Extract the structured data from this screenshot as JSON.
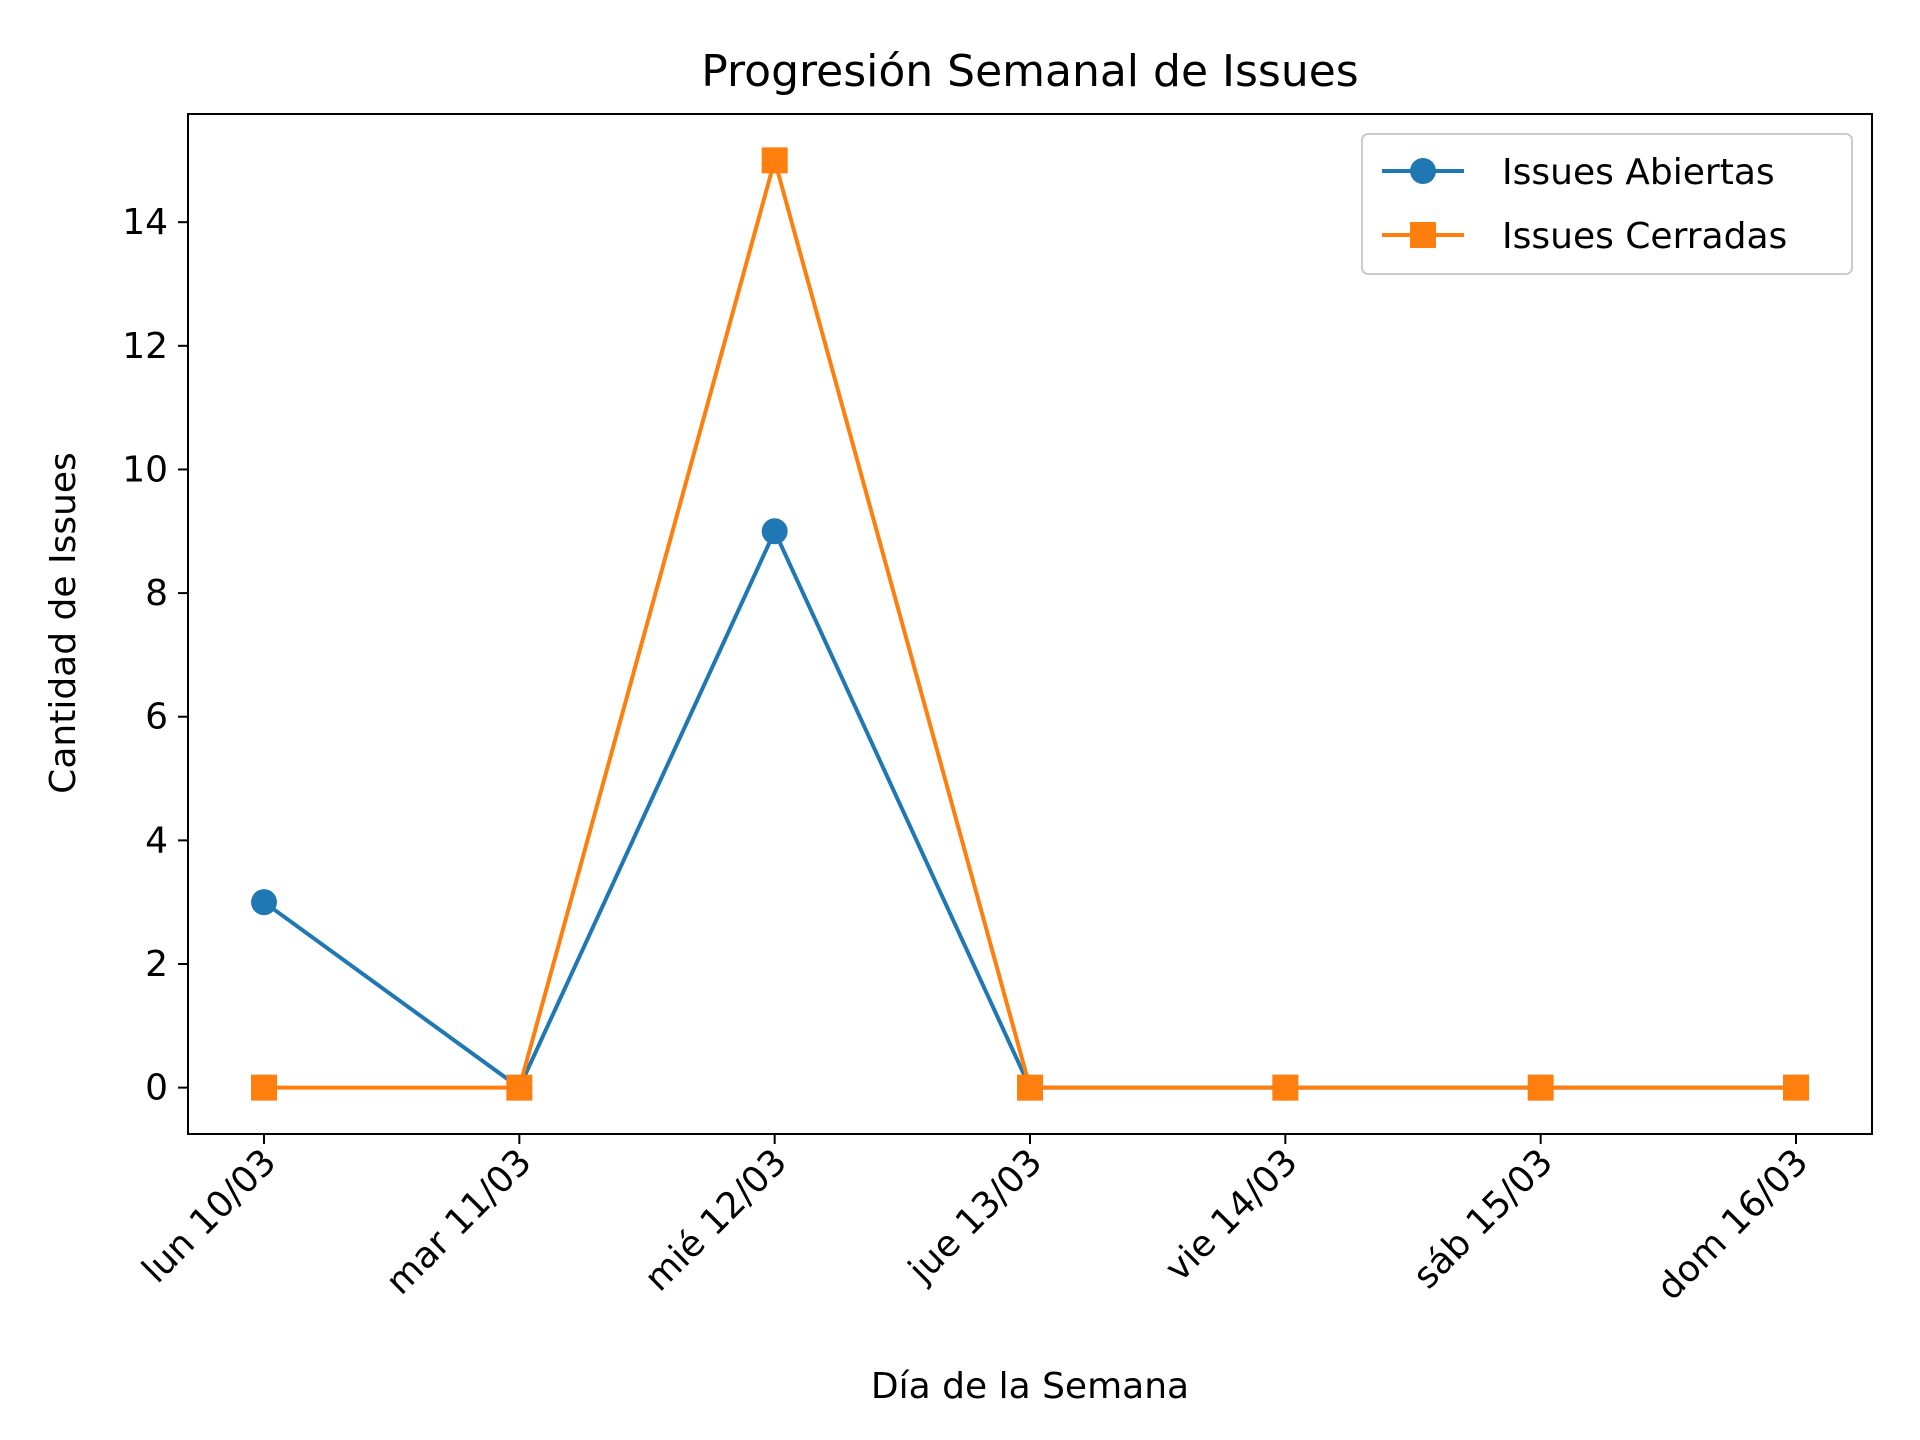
{
  "chart_data": {
    "type": "line",
    "title": "Progresión Semanal de Issues",
    "xlabel": "Día de la Semana",
    "ylabel": "Cantidad de Issues",
    "categories": [
      "lun 10/03",
      "mar 11/03",
      "mié 12/03",
      "jue 13/03",
      "vie 14/03",
      "sáb 15/03",
      "dom 16/03"
    ],
    "series": [
      {
        "name": "Issues Abiertas",
        "values": [
          3,
          0,
          9,
          0,
          0,
          0,
          0
        ],
        "color": "#1f77b4",
        "marker": "circle"
      },
      {
        "name": "Issues Cerradas",
        "values": [
          0,
          0,
          15,
          0,
          0,
          0,
          0
        ],
        "color": "#ff7f0e",
        "marker": "square"
      }
    ],
    "ylim": [
      -0.75,
      15.75
    ],
    "yticks": [
      0,
      2,
      4,
      6,
      8,
      10,
      12,
      14
    ],
    "grid": false,
    "legend_position": "top-right"
  }
}
